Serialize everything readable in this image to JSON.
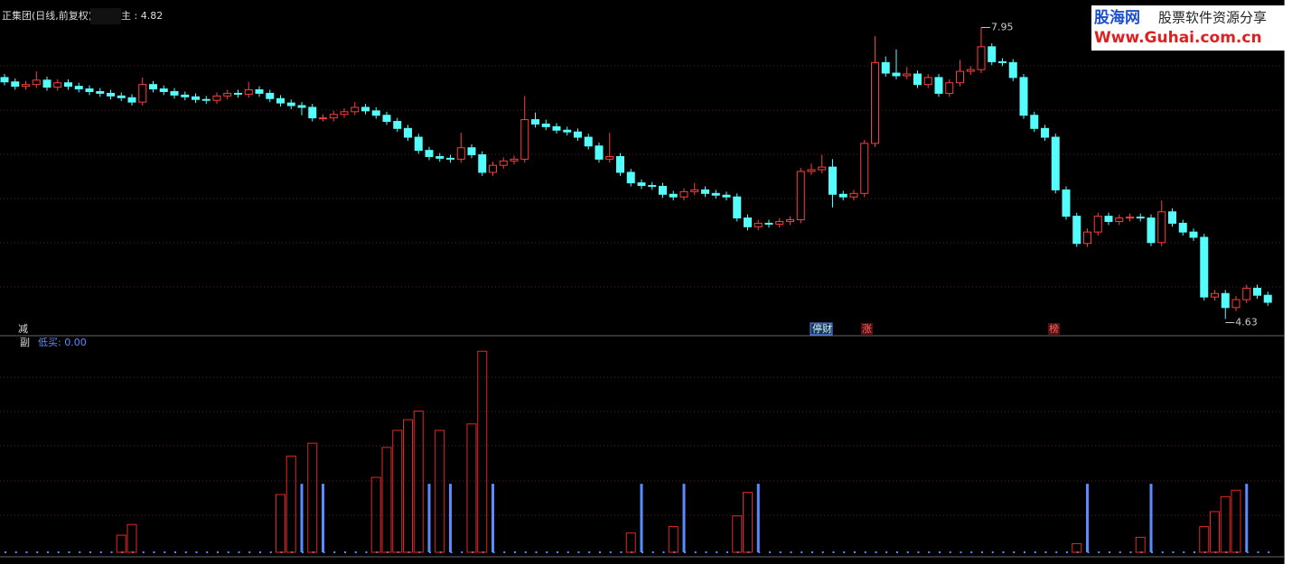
{
  "header": {
    "title": "正集团(日线,前复权)",
    "main_label": "主 : 4.82"
  },
  "watermark": {
    "logo": "股海网",
    "tagline": "股票软件资源分享",
    "url": "Www.Guhai.com.cn"
  },
  "markers": [
    "减",
    "停财",
    "涨",
    "榜"
  ],
  "chart_data": [
    {
      "type": "candlestick",
      "up_color": "#ff3c3c",
      "down_color": "#54fcfc",
      "ylim": [
        4.46,
        8.16
      ],
      "candles": [
        [
          7.38,
          7.42,
          7.29,
          7.33
        ],
        [
          7.33,
          7.37,
          7.24,
          7.28
        ],
        [
          7.28,
          7.34,
          7.24,
          7.3
        ],
        [
          7.3,
          7.45,
          7.26,
          7.35
        ],
        [
          7.35,
          7.39,
          7.23,
          7.27
        ],
        [
          7.27,
          7.36,
          7.23,
          7.32
        ],
        [
          7.32,
          7.36,
          7.24,
          7.28
        ],
        [
          7.28,
          7.32,
          7.21,
          7.25
        ],
        [
          7.25,
          7.29,
          7.18,
          7.22
        ],
        [
          7.22,
          7.26,
          7.16,
          7.2
        ],
        [
          7.2,
          7.24,
          7.13,
          7.17
        ],
        [
          7.17,
          7.21,
          7.11,
          7.15
        ],
        [
          7.15,
          7.19,
          7.06,
          7.1
        ],
        [
          7.1,
          7.38,
          7.06,
          7.3
        ],
        [
          7.3,
          7.34,
          7.21,
          7.25
        ],
        [
          7.25,
          7.29,
          7.18,
          7.22
        ],
        [
          7.22,
          7.26,
          7.14,
          7.18
        ],
        [
          7.18,
          7.22,
          7.12,
          7.16
        ],
        [
          7.16,
          7.2,
          7.09,
          7.13
        ],
        [
          7.13,
          7.17,
          7.08,
          7.12
        ],
        [
          7.12,
          7.21,
          7.08,
          7.17
        ],
        [
          7.17,
          7.24,
          7.13,
          7.2
        ],
        [
          7.2,
          7.24,
          7.15,
          7.19
        ],
        [
          7.19,
          7.33,
          7.15,
          7.24
        ],
        [
          7.24,
          7.28,
          7.16,
          7.2
        ],
        [
          7.2,
          7.24,
          7.1,
          7.14
        ],
        [
          7.14,
          7.18,
          7.05,
          7.09
        ],
        [
          7.09,
          7.13,
          7.02,
          7.06
        ],
        [
          7.06,
          7.1,
          6.95,
          7.04
        ],
        [
          7.04,
          7.08,
          6.88,
          6.92
        ],
        [
          6.92,
          6.96,
          6.88,
          6.92
        ],
        [
          6.92,
          7.0,
          6.88,
          6.96
        ],
        [
          6.96,
          7.03,
          6.92,
          6.99
        ],
        [
          6.99,
          7.1,
          6.95,
          7.04
        ],
        [
          7.04,
          7.08,
          6.96,
          7.0
        ],
        [
          7.0,
          7.04,
          6.91,
          6.95
        ],
        [
          6.95,
          6.99,
          6.84,
          6.88
        ],
        [
          6.88,
          6.92,
          6.76,
          6.8
        ],
        [
          6.8,
          6.84,
          6.66,
          6.7
        ],
        [
          6.7,
          6.74,
          6.51,
          6.55
        ],
        [
          6.55,
          6.59,
          6.44,
          6.48
        ],
        [
          6.48,
          6.52,
          6.42,
          6.46
        ],
        [
          6.46,
          6.5,
          6.41,
          6.45
        ],
        [
          6.45,
          6.75,
          6.41,
          6.58
        ],
        [
          6.58,
          6.62,
          6.46,
          6.5
        ],
        [
          6.5,
          6.54,
          6.26,
          6.3
        ],
        [
          6.3,
          6.42,
          6.26,
          6.38
        ],
        [
          6.38,
          6.47,
          6.34,
          6.43
        ],
        [
          6.43,
          6.49,
          6.39,
          6.45
        ],
        [
          6.45,
          7.17,
          6.41,
          6.9
        ],
        [
          6.9,
          6.98,
          6.81,
          6.85
        ],
        [
          6.85,
          6.9,
          6.78,
          6.82
        ],
        [
          6.82,
          6.86,
          6.74,
          6.78
        ],
        [
          6.78,
          6.82,
          6.72,
          6.76
        ],
        [
          6.76,
          6.8,
          6.66,
          6.7
        ],
        [
          6.7,
          6.74,
          6.56,
          6.6
        ],
        [
          6.6,
          6.64,
          6.41,
          6.45
        ],
        [
          6.45,
          6.75,
          6.41,
          6.48
        ],
        [
          6.48,
          6.52,
          6.26,
          6.3
        ],
        [
          6.3,
          6.34,
          6.14,
          6.18
        ],
        [
          6.18,
          6.22,
          6.11,
          6.15
        ],
        [
          6.15,
          6.19,
          6.1,
          6.14
        ],
        [
          6.14,
          6.18,
          6.01,
          6.05
        ],
        [
          6.05,
          6.09,
          5.98,
          6.02
        ],
        [
          6.02,
          6.12,
          5.98,
          6.08
        ],
        [
          6.08,
          6.18,
          6.04,
          6.1
        ],
        [
          6.1,
          6.14,
          6.02,
          6.06
        ],
        [
          6.06,
          6.1,
          6.0,
          6.04
        ],
        [
          6.04,
          6.08,
          5.98,
          6.02
        ],
        [
          6.02,
          6.06,
          5.74,
          5.78
        ],
        [
          5.78,
          5.82,
          5.64,
          5.68
        ],
        [
          5.68,
          5.76,
          5.64,
          5.72
        ],
        [
          5.72,
          5.76,
          5.67,
          5.71
        ],
        [
          5.71,
          5.78,
          5.67,
          5.74
        ],
        [
          5.74,
          5.8,
          5.7,
          5.76
        ],
        [
          5.76,
          6.35,
          5.72,
          6.31
        ],
        [
          6.31,
          6.4,
          6.27,
          6.33
        ],
        [
          6.33,
          6.5,
          6.29,
          6.36
        ],
        [
          6.36,
          6.45,
          5.9,
          6.05
        ],
        [
          6.05,
          6.09,
          5.98,
          6.02
        ],
        [
          6.02,
          6.1,
          5.98,
          6.06
        ],
        [
          6.06,
          6.67,
          6.02,
          6.63
        ],
        [
          6.63,
          7.85,
          6.59,
          7.55
        ],
        [
          7.55,
          7.62,
          7.39,
          7.43
        ],
        [
          7.43,
          7.7,
          7.36,
          7.4
        ],
        [
          7.4,
          7.5,
          7.36,
          7.42
        ],
        [
          7.42,
          7.46,
          7.26,
          7.3
        ],
        [
          7.3,
          7.42,
          7.26,
          7.38
        ],
        [
          7.38,
          7.42,
          7.16,
          7.2
        ],
        [
          7.2,
          7.36,
          7.16,
          7.32
        ],
        [
          7.32,
          7.58,
          7.28,
          7.45
        ],
        [
          7.45,
          7.51,
          7.41,
          7.47
        ],
        [
          7.47,
          7.95,
          7.43,
          7.73
        ],
        [
          7.73,
          7.77,
          7.52,
          7.56
        ],
        [
          7.56,
          7.6,
          7.51,
          7.55
        ],
        [
          7.55,
          7.59,
          7.34,
          7.38
        ],
        [
          7.38,
          7.42,
          6.91,
          6.95
        ],
        [
          6.95,
          6.99,
          6.76,
          6.8
        ],
        [
          6.8,
          6.84,
          6.66,
          6.7
        ],
        [
          6.7,
          6.74,
          6.06,
          6.1
        ],
        [
          6.1,
          6.14,
          5.76,
          5.8
        ],
        [
          5.8,
          5.84,
          5.45,
          5.49
        ],
        [
          5.49,
          5.66,
          5.45,
          5.62
        ],
        [
          5.62,
          5.84,
          5.58,
          5.8
        ],
        [
          5.8,
          5.84,
          5.7,
          5.74
        ],
        [
          5.74,
          5.82,
          5.7,
          5.78
        ],
        [
          5.78,
          5.83,
          5.74,
          5.79
        ],
        [
          5.79,
          5.83,
          5.74,
          5.78
        ],
        [
          5.78,
          5.82,
          5.46,
          5.5
        ],
        [
          5.5,
          5.98,
          5.46,
          5.85
        ],
        [
          5.85,
          5.89,
          5.68,
          5.72
        ],
        [
          5.72,
          5.76,
          5.58,
          5.62
        ],
        [
          5.62,
          5.66,
          5.52,
          5.56
        ],
        [
          5.56,
          5.6,
          4.84,
          4.88
        ],
        [
          4.88,
          4.96,
          4.84,
          4.92
        ],
        [
          4.92,
          4.96,
          4.63,
          4.76
        ],
        [
          4.76,
          4.89,
          4.72,
          4.85
        ],
        [
          4.85,
          5.02,
          4.81,
          4.98
        ],
        [
          4.98,
          5.02,
          4.86,
          4.9
        ],
        [
          4.9,
          4.94,
          4.78,
          4.82
        ]
      ]
    },
    {
      "type": "bar",
      "title": "副",
      "legend": "低买: 0.00",
      "ylim": [
        0,
        100
      ],
      "red": {
        "color": "#e02828",
        "x": [
          11,
          12,
          26,
          27,
          29,
          35,
          36,
          37,
          38,
          39,
          41,
          44,
          45,
          59,
          63,
          69,
          70,
          101,
          107,
          113,
          114,
          115,
          116
        ],
        "values": [
          8,
          13,
          27,
          45,
          51,
          35,
          49,
          57,
          62,
          66,
          57,
          60,
          94,
          9,
          12,
          17,
          28,
          4,
          7,
          12,
          19,
          26,
          29
        ]
      },
      "blue": {
        "color": "#5a8cff",
        "x": [
          28,
          30,
          40,
          42,
          46,
          60,
          64,
          71,
          102,
          108,
          117
        ],
        "values": [
          32,
          32,
          32,
          32,
          32,
          32,
          32,
          32,
          32,
          32,
          32
        ]
      }
    }
  ]
}
